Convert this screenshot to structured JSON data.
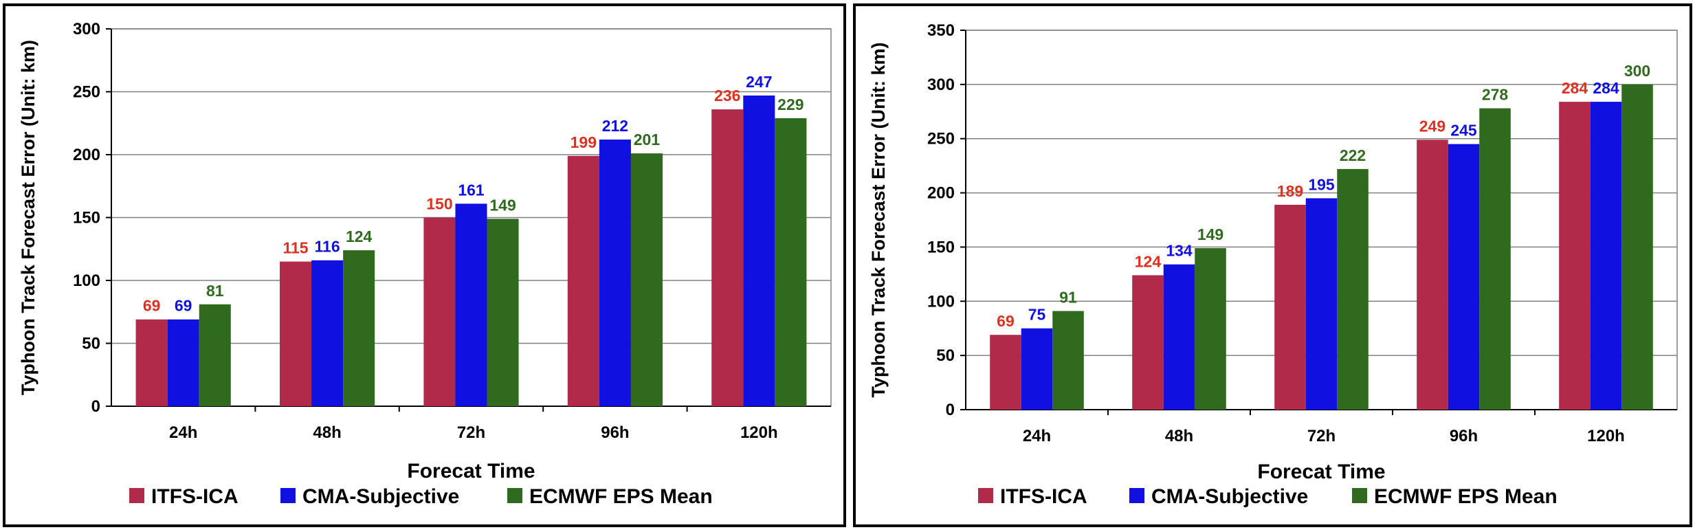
{
  "chart_data": [
    {
      "type": "bar",
      "categories": [
        "24h",
        "48h",
        "72h",
        "96h",
        "120h"
      ],
      "series": [
        {
          "name": "ITFS-ICA",
          "color": "#B22A4A",
          "values": [
            69,
            115,
            150,
            199,
            236
          ]
        },
        {
          "name": "CMA-Subjective",
          "color": "#1010E0",
          "values": [
            69,
            116,
            161,
            212,
            247
          ]
        },
        {
          "name": "ECMWF EPS Mean",
          "color": "#2F6A1E",
          "values": [
            81,
            124,
            149,
            201,
            229
          ]
        }
      ],
      "label_colors": [
        "#E03020",
        "#1010E0",
        "#2F6A1E"
      ],
      "xlabel": "Forecat Time",
      "ylabel": "Typhoon Track Forecast Error (Unit: km)",
      "ylim": [
        0,
        300
      ],
      "yticks": [
        0,
        50,
        100,
        150,
        200,
        250,
        300
      ],
      "grid": true,
      "legend": "bottom"
    },
    {
      "type": "bar",
      "categories": [
        "24h",
        "48h",
        "72h",
        "96h",
        "120h"
      ],
      "series": [
        {
          "name": "ITFS-ICA",
          "color": "#B22A4A",
          "values": [
            69,
            124,
            189,
            249,
            284
          ]
        },
        {
          "name": "CMA-Subjective",
          "color": "#1010E0",
          "values": [
            75,
            134,
            195,
            245,
            284
          ]
        },
        {
          "name": "ECMWF EPS Mean",
          "color": "#2F6A1E",
          "values": [
            91,
            149,
            222,
            278,
            300
          ]
        }
      ],
      "label_colors": [
        "#E03020",
        "#1010E0",
        "#2F6A1E"
      ],
      "xlabel": "Forecat Time",
      "ylabel": "Typhoon Track Forecast Error (Unit: km)",
      "ylim": [
        0,
        350
      ],
      "yticks": [
        0,
        50,
        100,
        150,
        200,
        250,
        300,
        350
      ],
      "grid": true,
      "legend": "bottom"
    }
  ]
}
